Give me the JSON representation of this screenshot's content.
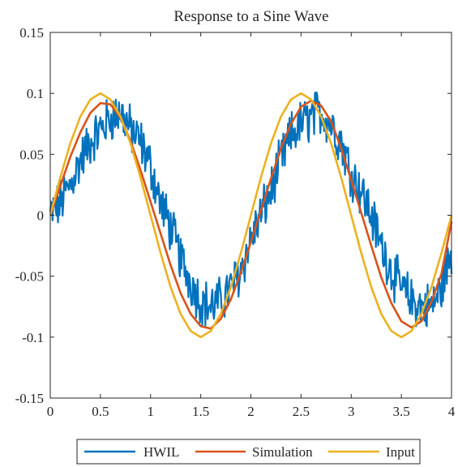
{
  "chart_data": {
    "type": "line",
    "title": "Response to a Sine Wave",
    "xlabel": "",
    "ylabel": "",
    "xlim": [
      0,
      4
    ],
    "ylim": [
      -0.15,
      0.15
    ],
    "xticks": [
      0,
      0.5,
      1,
      1.5,
      2,
      2.5,
      3,
      3.5,
      4
    ],
    "xtick_labels": [
      "0",
      "0.5",
      "1",
      "1.5",
      "2",
      "2.5",
      "3",
      "3.5",
      "4"
    ],
    "yticks": [
      -0.15,
      -0.1,
      -0.05,
      0,
      0.05,
      0.1,
      0.15
    ],
    "ytick_labels": [
      "-0.15",
      "-0.1",
      "-0.05",
      "0",
      "0.05",
      "0.1",
      "0.15"
    ],
    "grid": false,
    "legend_position": "bottom-outside",
    "x": [
      0,
      0.1,
      0.2,
      0.3,
      0.4,
      0.5,
      0.6,
      0.7,
      0.8,
      0.9,
      1.0,
      1.1,
      1.2,
      1.3,
      1.4,
      1.5,
      1.6,
      1.7,
      1.8,
      1.9,
      2.0,
      2.1,
      2.2,
      2.3,
      2.4,
      2.5,
      2.6,
      2.7,
      2.8,
      2.9,
      3.0,
      3.1,
      3.2,
      3.3,
      3.4,
      3.5,
      3.6,
      3.7,
      3.8,
      3.9,
      4.0
    ],
    "series": [
      {
        "name": "HWIL",
        "color": "#0072BD",
        "noisy": true,
        "values": [
          0.0,
          0.01,
          0.025,
          0.045,
          0.06,
          0.07,
          0.08,
          0.085,
          0.07,
          0.06,
          0.04,
          0.01,
          -0.01,
          -0.035,
          -0.055,
          -0.07,
          -0.075,
          -0.07,
          -0.06,
          -0.045,
          -0.02,
          0.0,
          0.02,
          0.045,
          0.065,
          0.075,
          0.08,
          0.085,
          0.075,
          0.06,
          0.035,
          0.02,
          0.0,
          -0.025,
          -0.045,
          -0.06,
          -0.07,
          -0.075,
          -0.075,
          -0.06,
          -0.03
        ]
      },
      {
        "name": "Simulation",
        "color": "#D95319",
        "values": [
          0.0,
          0.024,
          0.048,
          0.068,
          0.084,
          0.092,
          0.091,
          0.08,
          0.061,
          0.037,
          0.011,
          -0.015,
          -0.041,
          -0.064,
          -0.081,
          -0.091,
          -0.093,
          -0.085,
          -0.069,
          -0.047,
          -0.022,
          0.004,
          0.03,
          0.055,
          0.075,
          0.089,
          0.094,
          0.09,
          0.077,
          0.055,
          0.029,
          0.002,
          -0.025,
          -0.051,
          -0.072,
          -0.087,
          -0.092,
          -0.087,
          -0.071,
          -0.048,
          -0.005
        ]
      },
      {
        "name": "Input",
        "color": "#EDB120",
        "values": [
          0.0,
          0.031,
          0.059,
          0.081,
          0.095,
          0.1,
          0.095,
          0.081,
          0.059,
          0.031,
          0.0,
          -0.031,
          -0.059,
          -0.081,
          -0.095,
          -0.1,
          -0.095,
          -0.081,
          -0.059,
          -0.031,
          0.0,
          0.031,
          0.059,
          0.081,
          0.095,
          0.1,
          0.095,
          0.081,
          0.059,
          0.031,
          0.0,
          -0.031,
          -0.059,
          -0.081,
          -0.095,
          -0.1,
          -0.095,
          -0.081,
          -0.059,
          -0.031,
          0.0
        ]
      }
    ]
  }
}
